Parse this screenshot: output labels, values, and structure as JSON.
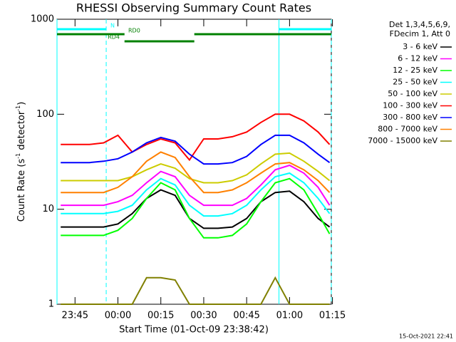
{
  "chart_data": {
    "type": "line",
    "title": "RHESSI Observing Summary Count Rates",
    "xlabel": "Start Time (01-Oct-09 23:38:42)",
    "ylabel_parts": [
      "Count Rate (s",
      "-1",
      " detector",
      "-1",
      ")"
    ],
    "footer": "15-Oct-2021 22:41",
    "legend_header": [
      "Det 1,3,4,5,6,9,",
      "FDecim 1, Att 0"
    ],
    "log_y": true,
    "xlim": [
      -21.3,
      74.6
    ],
    "ylim": [
      1,
      1000
    ],
    "yticks": [
      1,
      10,
      100,
      1000
    ],
    "xticks": [
      {
        "value": -15,
        "label": "23:45"
      },
      {
        "value": 0,
        "label": "00:00"
      },
      {
        "value": 15,
        "label": "00:15"
      },
      {
        "value": 30,
        "label": "00:30"
      },
      {
        "value": 45,
        "label": "00:45"
      },
      {
        "value": 60,
        "label": "01:00"
      },
      {
        "value": 75,
        "label": "01:15"
      }
    ],
    "x": [
      -20,
      -15,
      -10,
      -5,
      0,
      5,
      10,
      15,
      20,
      25,
      30,
      35,
      40,
      45,
      50,
      55,
      60,
      65,
      70,
      74
    ],
    "series": [
      {
        "name": "3 - 6 keV",
        "color": "#000000",
        "values": [
          6.5,
          6.5,
          6.5,
          6.5,
          7,
          9,
          13,
          16,
          14,
          8,
          6.3,
          6.3,
          6.5,
          8,
          12,
          15,
          15.5,
          12,
          8,
          6.5
        ]
      },
      {
        "name": "6 - 12 keV",
        "color": "#ff00ff",
        "values": [
          11,
          11,
          11,
          11,
          12,
          14,
          19,
          25,
          22,
          14,
          11,
          11,
          11,
          13,
          18,
          26,
          29,
          24,
          17,
          11
        ]
      },
      {
        "name": "12 - 25 keV",
        "color": "#00ff00",
        "values": [
          5.3,
          5.3,
          5.3,
          5.3,
          6,
          8,
          13,
          19,
          16,
          8,
          5,
          5,
          5.3,
          7,
          12,
          19,
          21,
          16,
          9,
          5.5
        ]
      },
      {
        "name": "25 - 50 keV",
        "color": "#00ffff",
        "values": [
          9,
          9,
          9,
          9,
          9.5,
          11,
          16,
          21,
          18,
          11,
          8.5,
          8.5,
          9,
          11,
          16,
          22,
          24,
          19,
          13,
          9
        ]
      },
      {
        "name": "50 - 100 keV",
        "color": "#cccc00",
        "values": [
          20,
          20,
          20,
          20,
          20,
          22,
          26,
          30,
          27,
          21,
          19,
          19,
          20,
          23,
          30,
          38,
          39,
          32,
          25,
          20
        ]
      },
      {
        "name": "100 - 300 keV",
        "color": "#ff0000",
        "values": [
          48,
          48,
          48,
          50,
          60,
          40,
          48,
          55,
          50,
          33,
          55,
          55,
          58,
          65,
          82,
          100,
          100,
          85,
          65,
          48
        ]
      },
      {
        "name": "300 - 800 keV",
        "color": "#0000ff",
        "values": [
          31,
          31,
          31,
          32,
          34,
          40,
          50,
          57,
          52,
          38,
          30,
          30,
          31,
          36,
          48,
          60,
          60,
          50,
          38,
          31
        ]
      },
      {
        "name": "800 - 7000 keV",
        "color": "#ff8000",
        "values": [
          15,
          15,
          15,
          15,
          17,
          22,
          32,
          40,
          35,
          22,
          15,
          15,
          16,
          19,
          24,
          30,
          31,
          26,
          20,
          15
        ]
      },
      {
        "name": "7000 - 15000 keV",
        "color": "#808000",
        "values": [
          1,
          1,
          1,
          1,
          1,
          1,
          1.9,
          1.9,
          1.8,
          1,
          1,
          1,
          1,
          1,
          1,
          1.9,
          1,
          1,
          1,
          1
        ]
      }
    ],
    "flags": [
      {
        "name": "N",
        "color": "#00ffff",
        "intervals": [
          [
            -21.3,
            -4.1
          ],
          [
            56.3,
            74.6
          ]
        ]
      },
      {
        "name": "RD0",
        "color": "#008000",
        "intervals": [
          [
            -21.3,
            2.3
          ],
          [
            26.7,
            74.6
          ]
        ]
      },
      {
        "name": "RD4",
        "color": "#008000",
        "intervals": [
          [
            2.3,
            26.7
          ]
        ]
      }
    ],
    "markers": [
      {
        "x": -21.3,
        "style": "solid",
        "color": "#00ffff"
      },
      {
        "x": -4.1,
        "style": "dashed",
        "color": "#00ffff"
      },
      {
        "x": 56.3,
        "style": "solid",
        "color": "#00ffff"
      },
      {
        "x": 74.6,
        "style": "dashed",
        "color": "#00ffff"
      }
    ]
  }
}
